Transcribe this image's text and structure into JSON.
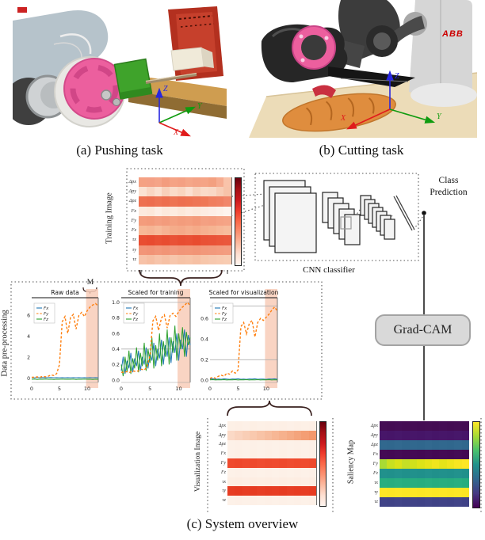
{
  "captions": {
    "a": "(a) Pushing task",
    "b": "(b) Cutting task",
    "c": "(c) System overview"
  },
  "photos": {
    "abb_logo": "ABB",
    "axis_x": "X",
    "axis_y": "Y",
    "axis_z": "Z"
  },
  "diagram": {
    "training_image_label": "Training Image",
    "visualization_image_label": "Visualization Image",
    "saliency_map_label": "Saliency Map",
    "preprocessing_label": "Data pre-processing",
    "cnn_label": "CNN classifier",
    "class_prediction_line1": "Class",
    "class_prediction_line2": "Prediction",
    "gradcam_label": "Grad-CAM",
    "window_label": "M"
  },
  "heatmaps": {
    "row_labels": [
      "Δpx",
      "Δpy",
      "Δpz",
      "Fx",
      "Fy",
      "Fz",
      "τx",
      "τy",
      "τz"
    ],
    "reds_colorbar": [
      "#67000d",
      "#a50f15",
      "#cb181d",
      "#ef3b2c",
      "#fb6a4a",
      "#fc9272",
      "#fcbba1",
      "#fee0d2",
      "#fff5f0"
    ],
    "viridis_colorbar": [
      "#fde725",
      "#a5db36",
      "#4ac16d",
      "#21918c",
      "#31688e",
      "#443983",
      "#440154"
    ],
    "training": {
      "rows": [
        [
          "#f5a183",
          "#f4a085",
          "#f5a488",
          "#f39c7e",
          "#f5a385",
          "#f4a083",
          "#f5a688",
          "#f4a285",
          "#f5a486",
          "#f3a080",
          "#f6ac90",
          "#f9c3aa"
        ],
        [
          "#fbe2d3",
          "#f9d6c3",
          "#fbe0d0",
          "#f8d0ba",
          "#fadcc9",
          "#f9d5c0",
          "#fbdfd0",
          "#f8d2bd",
          "#fadbc8",
          "#f9d8c5",
          "#f8cdb6",
          "#f7c3a9"
        ],
        [
          "#ee7050",
          "#ed6d4e",
          "#ee7252",
          "#ed6e4e",
          "#ee7453",
          "#ed6f50",
          "#ee7150",
          "#ee7454",
          "#ef7856",
          "#f07e5e",
          "#f08062",
          "#f1866a"
        ],
        [
          "#fceade",
          "#fce8da",
          "#fdeee4",
          "#fce9dc",
          "#fdece0",
          "#fce8da",
          "#fdebe0",
          "#fce9dc",
          "#fdece2",
          "#fdeee6",
          "#fdf1e9",
          "#fef4ee"
        ],
        [
          "#f49c7c",
          "#f39a7a",
          "#f49e80",
          "#f39b7c",
          "#f4a080",
          "#f39c7c",
          "#f49e7e",
          "#f39a7a",
          "#f4a082",
          "#f49e80",
          "#f5a284",
          "#f5a486"
        ],
        [
          "#f7b896",
          "#f6b494",
          "#f7ba9a",
          "#f6b292",
          "#f5ac8a",
          "#f5a988",
          "#f6ae8d",
          "#f5aa88",
          "#f6b08f",
          "#f6b492",
          "#f7b898",
          "#f7bc9c"
        ],
        [
          "#e94e32",
          "#e84b30",
          "#e95034",
          "#e84d31",
          "#e95236",
          "#e84e32",
          "#e95034",
          "#e84c30",
          "#e95236",
          "#e95338",
          "#ea563a",
          "#ea583c"
        ],
        [
          "#f29578",
          "#f19376",
          "#f2977a",
          "#f19476",
          "#f2987c",
          "#f19578",
          "#f29678",
          "#f19476",
          "#f2987a",
          "#f2997c",
          "#f39b7e",
          "#f39d80"
        ],
        [
          "#f7c2a8",
          "#f6bea2",
          "#f7c4aa",
          "#f6c0a4",
          "#f7c6ac",
          "#f6c2a6",
          "#f7c4a8",
          "#f6c0a4",
          "#f7c6aa",
          "#f7c8ae",
          "#f8cab0",
          "#f8ccb2"
        ]
      ]
    },
    "visualization": {
      "rows": [
        [
          "#fdf0e6",
          "#fdefe5",
          "#fdf0e7",
          "#fdefe4",
          "#fdf0e6",
          "#fdefe5",
          "#fdf0e6",
          "#fdefe5",
          "#fdf0e7",
          "#fdefe5",
          "#fdf0e6",
          "#fdefe5"
        ],
        [
          "#fbd9c6",
          "#fad3be",
          "#f9ceb6",
          "#f9c9ae",
          "#f8c3a6",
          "#f7bd9e",
          "#f7b795",
          "#f6b18d",
          "#f5ab85",
          "#f4a47c",
          "#f49e74",
          "#f3986c"
        ],
        [
          "#fdf1e8",
          "#fdf0e7",
          "#fdf1e8",
          "#fdf0e7",
          "#fdf1e8",
          "#fdf0e7",
          "#fdf1e8",
          "#fdf0e7",
          "#fdf1e8",
          "#fdf0e7",
          "#fdf1e8",
          "#fdf0e7"
        ],
        [
          "#fdf1e8",
          "#fdf0e6",
          "#fdf1e8",
          "#fdf0e6",
          "#fdf1e8",
          "#fdf0e6",
          "#fdf1e8",
          "#fdf0e6",
          "#fdf1e8",
          "#fdf0e6",
          "#fdf1e8",
          "#fdf0e6"
        ],
        [
          "#ef4a2d",
          "#ee482b",
          "#ef4b2e",
          "#ee492c",
          "#ef4c2f",
          "#ee4a2d",
          "#ef4b2e",
          "#ee492c",
          "#ef4c2f",
          "#ef4a2d",
          "#ef4b2e",
          "#ee492c"
        ],
        [
          "#fdf1e8",
          "#fdf0e7",
          "#fdf1e8",
          "#fdf0e7",
          "#fdf1e8",
          "#fdf0e7",
          "#fdf1e8",
          "#fdf0e7",
          "#fdf1e8",
          "#fdf0e7",
          "#fdf1e8",
          "#fdf0e7"
        ],
        [
          "#fdeee3",
          "#fdede2",
          "#fdeee4",
          "#fdede2",
          "#fdeee3",
          "#fdede2",
          "#fdeee4",
          "#fdede2",
          "#fdeee3",
          "#fdede2",
          "#fdeee4",
          "#fdede2"
        ],
        [
          "#e73c22",
          "#e63a20",
          "#e73d23",
          "#e63b21",
          "#e73e24",
          "#e63c22",
          "#e73d23",
          "#e63b21",
          "#e73e24",
          "#e73c22",
          "#e73d23",
          "#e63b21"
        ],
        [
          "#fdf1e8",
          "#fdf0e7",
          "#fdf1e8",
          "#fdf0e7",
          "#fdf1e8",
          "#fdf0e7",
          "#fdf1e8",
          "#fdf0e7",
          "#fdf1e8",
          "#fdf0e7",
          "#fdf1e8",
          "#fdf0e7"
        ]
      ]
    },
    "saliency": {
      "rows": [
        [
          "#450d54",
          "#440c53",
          "#450d55",
          "#440c53",
          "#450d54",
          "#440c53",
          "#450d54",
          "#440c53",
          "#450d55",
          "#440c53",
          "#450d54",
          "#440c53"
        ],
        [
          "#471669",
          "#461568",
          "#47176a",
          "#461568",
          "#471669",
          "#461568",
          "#47176a",
          "#461568",
          "#471669",
          "#461568",
          "#47176a",
          "#461568"
        ],
        [
          "#31688e",
          "#30678d",
          "#32698f",
          "#30678d",
          "#31688e",
          "#30678d",
          "#32698f",
          "#30678d",
          "#31688e",
          "#30678d",
          "#32698f",
          "#30678d"
        ],
        [
          "#440a54",
          "#430953",
          "#440b55",
          "#430953",
          "#440a54",
          "#430953",
          "#440b55",
          "#430953",
          "#440a54",
          "#430953",
          "#440b55",
          "#430953"
        ],
        [
          "#a8db34",
          "#c8e020",
          "#d8e219",
          "#c5df25",
          "#d0e11c",
          "#dde318",
          "#e7e419",
          "#f0e51d",
          "#e5e419",
          "#efe51c",
          "#f8e621",
          "#fde725"
        ],
        [
          "#21918c",
          "#20908b",
          "#22928d",
          "#20908b",
          "#21918c",
          "#20908b",
          "#22928d",
          "#20908b",
          "#21918c",
          "#20908b",
          "#22928d",
          "#20908b"
        ],
        [
          "#28ae80",
          "#27ad7f",
          "#29af81",
          "#27ad7f",
          "#28ae80",
          "#27ad7f",
          "#29af81",
          "#27ad7f",
          "#28ae80",
          "#27ad7f",
          "#29af81",
          "#27ad7f"
        ],
        [
          "#fde725",
          "#fce624",
          "#fde726",
          "#fce624",
          "#fde725",
          "#fce624",
          "#fde726",
          "#fce624",
          "#fde725",
          "#fce624",
          "#fde726",
          "#fce624"
        ],
        [
          "#404387",
          "#3f4286",
          "#414488",
          "#3f4286",
          "#404387",
          "#3f4286",
          "#414488",
          "#3f4286",
          "#404387",
          "#3f4286",
          "#414488",
          "#3f4286"
        ]
      ]
    }
  },
  "chart_data": {
    "type": "line",
    "band_color": "#f8cdb8",
    "plots": [
      {
        "title": "Raw data",
        "xmax": 12,
        "xticks": [
          0,
          5,
          10
        ],
        "ylim": [
          -0.4,
          7.7
        ],
        "yticks": [
          0,
          2,
          4,
          6
        ],
        "ytick_labels": [
          "0",
          "2",
          "4",
          "6"
        ],
        "hlines": [],
        "band_x": [
          9.8,
          12
        ],
        "band_label": "M",
        "legend": [
          "Fx",
          "Fy",
          "Fz"
        ],
        "series": [
          {
            "name": "Fx",
            "color": "#1f77b4",
            "dash": false,
            "values": [
              0.06,
              0.05,
              0.07,
              0.05,
              0.06,
              0.05,
              0.06,
              0.07,
              0.05,
              0.06,
              0.05,
              0.06,
              0.05,
              0.06,
              0.05,
              0.06,
              0.05,
              0.06,
              0.05,
              0.06,
              0.05,
              0.06,
              0.05,
              0.06,
              0.05
            ]
          },
          {
            "name": "Fz",
            "color": "#2ca02c",
            "dash": false,
            "values": [
              -0.1,
              -0.08,
              -0.11,
              -0.09,
              -0.1,
              -0.08,
              -0.1,
              -0.09,
              -0.11,
              -0.09,
              -0.1,
              -0.08,
              -0.1,
              -0.09,
              -0.1,
              -0.08,
              -0.11,
              -0.09,
              -0.1,
              -0.08,
              -0.1,
              -0.09,
              -0.11,
              -0.09,
              -0.1
            ]
          },
          {
            "name": "Fy",
            "color": "#ff7f0e",
            "dash": true,
            "values": [
              0.1,
              0.1,
              0.13,
              0.1,
              0.18,
              0.14,
              0.2,
              0.32,
              0.26,
              0.45,
              1.3,
              5.4,
              5.9,
              4.3,
              5.8,
              6.1,
              4.7,
              6.0,
              6.3,
              5.9,
              6.45,
              6.8,
              7.0,
              7.15,
              6.9
            ]
          }
        ]
      },
      {
        "title": "Scaled for training",
        "xmax": 12,
        "xticks": [
          0,
          5,
          10
        ],
        "ylim": [
          -0.03,
          1.06
        ],
        "yticks": [
          0,
          0.2,
          0.4,
          0.6,
          0.8,
          1.0
        ],
        "ytick_labels": [
          "0.0",
          "0.2",
          "0.4",
          "0.6",
          "0.8",
          "1.0"
        ],
        "hlines": [
          0.4,
          1.0
        ],
        "band_x": [
          9.8,
          12
        ],
        "band_label": "",
        "legend": [
          "Fx",
          "Fy",
          "Fz"
        ],
        "series": [
          {
            "name": "Fx",
            "color": "#1f77b4",
            "dash": false,
            "values": [
              0.12,
              0.3,
              0.08,
              0.25,
              0.15,
              0.35,
              0.1,
              0.28,
              0.18,
              0.38,
              0.12,
              0.3,
              0.2,
              0.42,
              0.15,
              0.35,
              0.25,
              0.48,
              0.18,
              0.4,
              0.28,
              0.52,
              0.2,
              0.45,
              0.3,
              0.55,
              0.22,
              0.5,
              0.35,
              0.6,
              0.25,
              0.52,
              0.4,
              0.65,
              0.3,
              0.58,
              0.45
            ]
          },
          {
            "name": "Fz",
            "color": "#2ca02c",
            "dash": false,
            "values": [
              0.2,
              0.05,
              0.3,
              0.1,
              0.38,
              0.08,
              0.28,
              0.15,
              0.42,
              0.1,
              0.35,
              0.18,
              0.48,
              0.12,
              0.4,
              0.22,
              0.55,
              0.15,
              0.45,
              0.25,
              0.6,
              0.18,
              0.5,
              0.3,
              0.65,
              0.2,
              0.55,
              0.35,
              0.7,
              0.25,
              0.6,
              0.4,
              0.68,
              0.3,
              0.62,
              0.45,
              0.55
            ]
          },
          {
            "name": "Fy",
            "color": "#ff7f0e",
            "dash": true,
            "values": [
              0.1,
              0.1,
              0.11,
              0.1,
              0.12,
              0.11,
              0.12,
              0.14,
              0.13,
              0.17,
              0.32,
              0.76,
              0.82,
              0.64,
              0.8,
              0.84,
              0.67,
              0.83,
              0.86,
              0.82,
              0.88,
              0.93,
              0.96,
              1.0,
              0.96
            ]
          }
        ]
      },
      {
        "title": "Scaled for visualization",
        "xmax": 12,
        "xticks": [
          0,
          5,
          10
        ],
        "ylim": [
          -0.02,
          0.8
        ],
        "yticks": [
          0,
          0.2,
          0.4,
          0.6
        ],
        "ytick_labels": [
          "0.0",
          "0.2",
          "0.4",
          "0.6"
        ],
        "hlines": [
          0.2,
          0.72
        ],
        "band_x": [
          9.8,
          12
        ],
        "band_label": "",
        "legend": [
          "Fx",
          "Fy",
          "Fz"
        ],
        "series": [
          {
            "name": "Fx",
            "color": "#1f77b4",
            "dash": false,
            "values": [
              0.012,
              0.015,
              0.01,
              0.014,
              0.011,
              0.015,
              0.012,
              0.01,
              0.014,
              0.012,
              0.015,
              0.011,
              0.013,
              0.01,
              0.014,
              0.012,
              0.015,
              0.011,
              0.013,
              0.012,
              0.01,
              0.014,
              0.012,
              0.015,
              0.011
            ]
          },
          {
            "name": "Fz",
            "color": "#2ca02c",
            "dash": false,
            "values": [
              0.005,
              0.007,
              0.004,
              0.006,
              0.005,
              0.007,
              0.004,
              0.006,
              0.005,
              0.007,
              0.004,
              0.006,
              0.005,
              0.007,
              0.004,
              0.006,
              0.005,
              0.007,
              0.004,
              0.006,
              0.005,
              0.007,
              0.004,
              0.006,
              0.005
            ]
          },
          {
            "name": "Fy",
            "color": "#ff7f0e",
            "dash": true,
            "values": [
              0.02,
              0.03,
              0.02,
              0.04,
              0.05,
              0.04,
              0.07,
              0.06,
              0.09,
              0.07,
              0.1,
              0.52,
              0.56,
              0.45,
              0.55,
              0.58,
              0.42,
              0.56,
              0.6,
              0.58,
              0.61,
              0.64,
              0.68,
              0.71,
              0.67
            ]
          }
        ]
      }
    ],
    "heatmap_summaries": [
      {
        "name": "Training Image",
        "colormap": "Reds",
        "rows": [
          "Δpx",
          "Δpy",
          "Δpz",
          "Fx",
          "Fy",
          "Fz",
          "τx",
          "τy",
          "τz"
        ],
        "row_intensity": [
          0.45,
          0.15,
          0.62,
          0.08,
          0.42,
          0.3,
          0.75,
          0.4,
          0.28
        ]
      },
      {
        "name": "Visualization Image",
        "colormap": "Reds",
        "rows": [
          "Δpx",
          "Δpy",
          "Δpz",
          "Fx",
          "Fy",
          "Fz",
          "τx",
          "τy",
          "τz"
        ],
        "row_intensity": [
          0.05,
          0.35,
          0.04,
          0.04,
          0.8,
          0.04,
          0.05,
          0.85,
          0.04
        ]
      },
      {
        "name": "Saliency Map",
        "colormap": "viridis",
        "rows": [
          "Δpx",
          "Δpy",
          "Δpz",
          "Fx",
          "Fy",
          "Fz",
          "τx",
          "τy",
          "τz"
        ],
        "row_intensity": [
          0.05,
          0.1,
          0.45,
          0.04,
          0.88,
          0.55,
          0.62,
          1.0,
          0.2
        ]
      }
    ]
  }
}
